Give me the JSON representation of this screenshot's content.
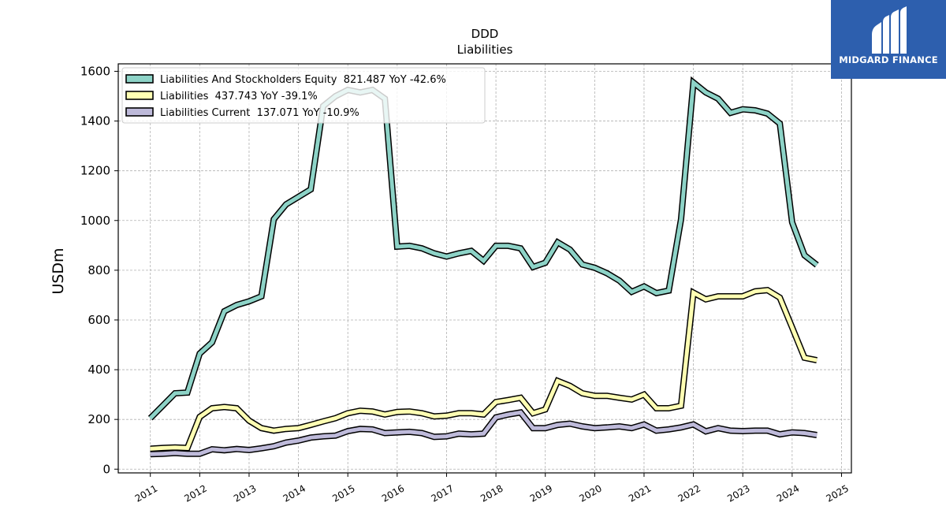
{
  "brand": {
    "name": "MIDGARD FINANCE",
    "bg_color": "#2d5fae",
    "icon": "midgard-logo-icon"
  },
  "chart_data": {
    "type": "line",
    "title": "DDD",
    "subtitle": "Liabilities",
    "xlabel": "",
    "ylabel": "USDm",
    "xlim": [
      2010.35,
      2025.2
    ],
    "ylim": [
      -15,
      1630
    ],
    "x_ticks": [
      "2011",
      "2012",
      "2013",
      "2014",
      "2015",
      "2016",
      "2017",
      "2018",
      "2019",
      "2020",
      "2021",
      "2022",
      "2023",
      "2024",
      "2025"
    ],
    "y_ticks": [
      0,
      200,
      400,
      600,
      800,
      1000,
      1200,
      1400,
      1600
    ],
    "grid": true,
    "legend_position": "top-left",
    "series": [
      {
        "name": "Liabilities And Stockholders Equity",
        "legend": "Liabilities And Stockholders Equity  821.487 YoY -42.6%",
        "color": "#8dd3c7",
        "x": [
          2011.0,
          2011.25,
          2011.5,
          2011.75,
          2012.0,
          2012.25,
          2012.5,
          2012.75,
          2013.0,
          2013.25,
          2013.5,
          2013.75,
          2014.0,
          2014.25,
          2014.5,
          2014.75,
          2015.0,
          2015.25,
          2015.5,
          2015.75,
          2016.0,
          2016.25,
          2016.5,
          2016.75,
          2017.0,
          2017.25,
          2017.5,
          2017.75,
          2018.0,
          2018.25,
          2018.5,
          2018.75,
          2019.0,
          2019.25,
          2019.5,
          2019.75,
          2020.0,
          2020.25,
          2020.5,
          2020.75,
          2021.0,
          2021.25,
          2021.5,
          2021.75,
          2022.0,
          2022.25,
          2022.5,
          2022.75,
          2023.0,
          2023.25,
          2023.5,
          2023.75,
          2024.0,
          2024.25,
          2024.5
        ],
        "y": [
          205,
          255,
          305,
          308,
          465,
          510,
          635,
          660,
          675,
          695,
          1005,
          1065,
          1095,
          1125,
          1460,
          1500,
          1525,
          1515,
          1525,
          1490,
          895,
          898,
          888,
          868,
          855,
          868,
          878,
          838,
          898,
          898,
          888,
          813,
          830,
          912,
          883,
          823,
          810,
          788,
          758,
          713,
          735,
          708,
          718,
          1005,
          1555,
          1515,
          1490,
          1433,
          1447,
          1443,
          1430,
          1390,
          993,
          860,
          821
        ]
      },
      {
        "name": "Liabilities",
        "legend": "Liabilities  437.743 YoY -39.1%",
        "color": "#ffffb3",
        "x": [
          2011.0,
          2011.25,
          2011.5,
          2011.75,
          2012.0,
          2012.25,
          2012.5,
          2012.75,
          2013.0,
          2013.25,
          2013.5,
          2013.75,
          2014.0,
          2014.25,
          2014.5,
          2014.75,
          2015.0,
          2015.25,
          2015.5,
          2015.75,
          2016.0,
          2016.25,
          2016.5,
          2016.75,
          2017.0,
          2017.25,
          2017.5,
          2017.75,
          2018.0,
          2018.25,
          2018.5,
          2018.75,
          2019.0,
          2019.25,
          2019.5,
          2019.75,
          2020.0,
          2020.25,
          2020.5,
          2020.75,
          2021.0,
          2021.25,
          2021.5,
          2021.75,
          2022.0,
          2022.25,
          2022.5,
          2022.75,
          2023.0,
          2023.25,
          2023.5,
          2023.75,
          2024.0,
          2024.25,
          2024.5
        ],
        "y": [
          82,
          85,
          87,
          85,
          210,
          245,
          250,
          245,
          195,
          165,
          155,
          162,
          165,
          178,
          192,
          205,
          225,
          235,
          232,
          220,
          230,
          232,
          225,
          212,
          215,
          225,
          225,
          220,
          270,
          278,
          287,
          225,
          240,
          355,
          335,
          305,
          295,
          295,
          287,
          280,
          300,
          245,
          245,
          255,
          710,
          683,
          695,
          695,
          695,
          715,
          720,
          690,
          570,
          448,
          438
        ]
      },
      {
        "name": "Liabilities Current",
        "legend": "Liabilities Current  137.071 YoY -10.9%",
        "color": "#bebada",
        "x": [
          2011.0,
          2011.25,
          2011.5,
          2011.75,
          2012.0,
          2012.25,
          2012.5,
          2012.75,
          2013.0,
          2013.25,
          2013.5,
          2013.75,
          2014.0,
          2014.25,
          2014.5,
          2014.75,
          2015.0,
          2015.25,
          2015.5,
          2015.75,
          2016.0,
          2016.25,
          2016.5,
          2016.75,
          2017.0,
          2017.25,
          2017.5,
          2017.75,
          2018.0,
          2018.25,
          2018.5,
          2018.75,
          2019.0,
          2019.25,
          2019.5,
          2019.75,
          2020.0,
          2020.25,
          2020.5,
          2020.75,
          2021.0,
          2021.25,
          2021.5,
          2021.75,
          2022.0,
          2022.25,
          2022.5,
          2022.75,
          2023.0,
          2023.25,
          2023.5,
          2023.75,
          2024.0,
          2024.25,
          2024.5
        ],
        "y": [
          60,
          62,
          65,
          62,
          62,
          80,
          76,
          81,
          77,
          84,
          92,
          107,
          115,
          127,
          132,
          135,
          153,
          162,
          160,
          145,
          148,
          150,
          145,
          130,
          132,
          143,
          140,
          143,
          208,
          220,
          228,
          165,
          165,
          178,
          183,
          172,
          165,
          168,
          172,
          165,
          180,
          155,
          160,
          168,
          180,
          152,
          165,
          155,
          153,
          155,
          155,
          140,
          148,
          145,
          137
        ]
      }
    ]
  }
}
